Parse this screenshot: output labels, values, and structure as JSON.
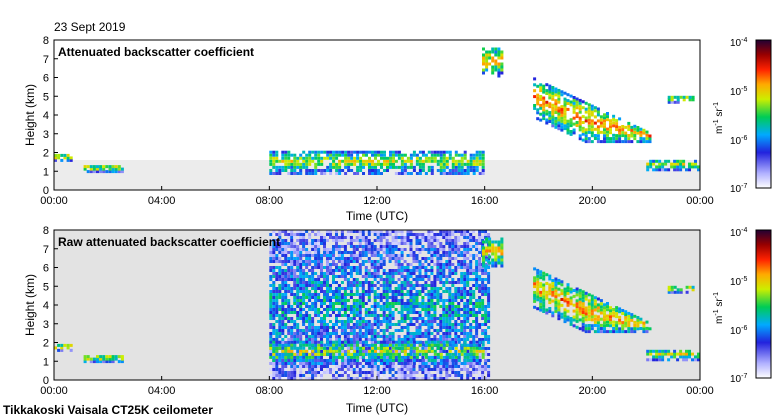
{
  "header": {
    "date": "23 Sept 2019"
  },
  "footer": {
    "station": "Tikkakoski Vaisala CT25K ceilometer"
  },
  "colorbar": {
    "labels": [
      "10",
      "10",
      "10",
      "10"
    ],
    "exponents": [
      "-4",
      "-5",
      "-6",
      "-7"
    ],
    "unit": "m",
    "unit_exp": "-1",
    "unit_sr": "sr",
    "unit_sr_exp": "-1",
    "stops": [
      "#ffffff",
      "#b0b0ff",
      "#2222dd",
      "#00aaff",
      "#00cc55",
      "#ccee00",
      "#ffaa00",
      "#ff2200",
      "#990000",
      "#220033"
    ]
  },
  "chart_data": [
    {
      "type": "heatmap",
      "title": "Attenuated backscatter coefficient",
      "xlabel": "Time (UTC)",
      "ylabel": "Height (km)",
      "xticks": [
        "00:00",
        "04:00",
        "08:00",
        "12:00",
        "16:00",
        "20:00",
        "00:00"
      ],
      "yticks": [
        "0",
        "1",
        "2",
        "3",
        "4",
        "5",
        "6",
        "7",
        "8"
      ],
      "xlim_hours": [
        0,
        24
      ],
      "ylim_km": [
        0,
        8
      ],
      "colorscale_range": [
        1e-07,
        0.0001
      ],
      "features": [
        {
          "name": "cloud-base-early",
          "t": [
            0.0,
            0.7
          ],
          "h": [
            1.5,
            1.9
          ],
          "level": 0.6
        },
        {
          "name": "cloud-base-1h",
          "t": [
            1.1,
            2.6
          ],
          "h": [
            0.9,
            1.3
          ],
          "level": 0.6
        },
        {
          "name": "cloud-base-day",
          "t": [
            8.0,
            16.0
          ],
          "h": [
            0.8,
            2.1
          ],
          "level": 0.55
        },
        {
          "name": "high-cloud-16h",
          "t": [
            15.9,
            16.7
          ],
          "h": [
            6.0,
            7.6
          ],
          "level": 0.65
        },
        {
          "name": "descending-layer",
          "t": [
            17.8,
            22.2
          ],
          "h": [
            2.5,
            6.0
          ],
          "level": 0.7
        },
        {
          "name": "evening-layer",
          "t": [
            22.8,
            23.8
          ],
          "h": [
            4.6,
            5.0
          ],
          "level": 0.6
        },
        {
          "name": "evening-low-cloud",
          "t": [
            22.0,
            24.0
          ],
          "h": [
            1.0,
            1.6
          ],
          "level": 0.55
        }
      ]
    },
    {
      "type": "heatmap",
      "title": "Raw attenuated backscatter coefficient",
      "xlabel": "Time (UTC)",
      "ylabel": "Height (km)",
      "xticks": [
        "00:00",
        "04:00",
        "08:00",
        "12:00",
        "16:00",
        "20:00",
        "00:00"
      ],
      "yticks": [
        "0",
        "1",
        "2",
        "3",
        "4",
        "5",
        "6",
        "7",
        "8"
      ],
      "xlim_hours": [
        0,
        24
      ],
      "ylim_km": [
        0,
        8
      ],
      "colorscale_range": [
        1e-07,
        0.0001
      ],
      "features": [
        {
          "name": "cloud-base-early",
          "t": [
            0.0,
            0.7
          ],
          "h": [
            1.5,
            1.9
          ],
          "level": 0.6
        },
        {
          "name": "cloud-base-1h",
          "t": [
            1.1,
            2.6
          ],
          "h": [
            0.9,
            1.3
          ],
          "level": 0.6
        },
        {
          "name": "noise-curtain-day",
          "t": [
            8.0,
            16.2
          ],
          "h": [
            0.0,
            8.0
          ],
          "level": 0.35
        },
        {
          "name": "cloud-base-day",
          "t": [
            8.0,
            16.0
          ],
          "h": [
            0.8,
            2.1
          ],
          "level": 0.55
        },
        {
          "name": "high-cloud-16h",
          "t": [
            15.9,
            16.7
          ],
          "h": [
            6.0,
            7.6
          ],
          "level": 0.65
        },
        {
          "name": "descending-layer",
          "t": [
            17.8,
            22.2
          ],
          "h": [
            2.5,
            6.0
          ],
          "level": 0.7
        },
        {
          "name": "evening-layer",
          "t": [
            22.8,
            23.8
          ],
          "h": [
            4.6,
            5.0
          ],
          "level": 0.6
        },
        {
          "name": "evening-low-cloud",
          "t": [
            22.0,
            24.0
          ],
          "h": [
            1.0,
            1.6
          ],
          "level": 0.55
        }
      ]
    }
  ]
}
